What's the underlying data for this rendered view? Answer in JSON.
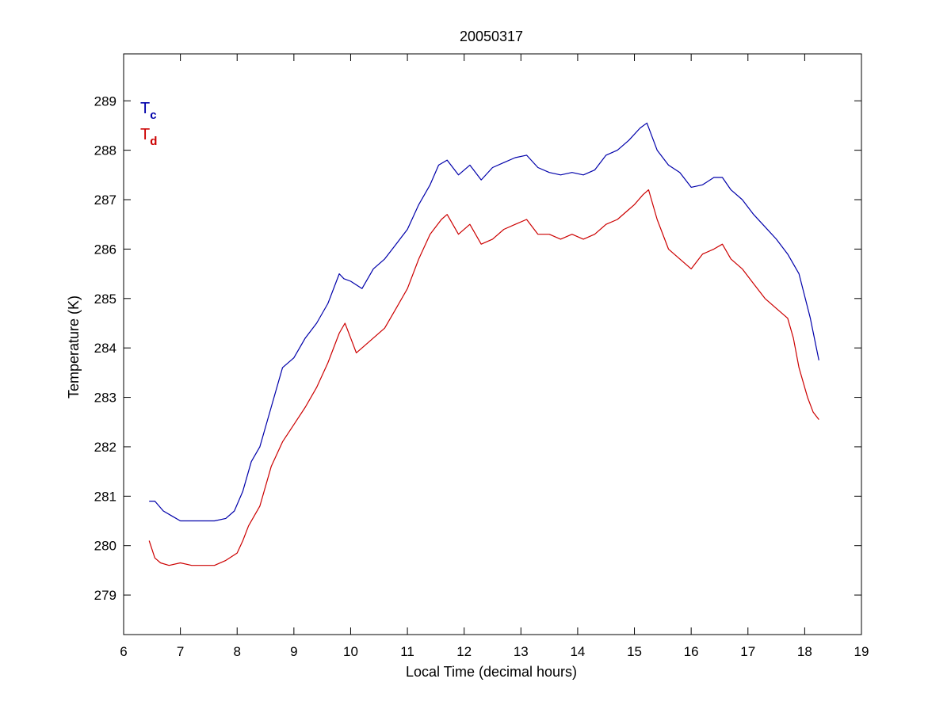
{
  "chart_data": {
    "type": "line",
    "title": "20050317",
    "xlabel": "Local Time (decimal hours)",
    "ylabel": "Temperature (K)",
    "xlim": [
      6,
      19
    ],
    "ylim": [
      278.2,
      289.95
    ],
    "xticks": [
      6,
      7,
      8,
      9,
      10,
      11,
      12,
      13,
      14,
      15,
      16,
      17,
      18,
      19
    ],
    "yticks": [
      279,
      280,
      281,
      282,
      283,
      284,
      285,
      286,
      287,
      288,
      289
    ],
    "grid": false,
    "legend_position": "top-left",
    "series": [
      {
        "name": "T",
        "subscript": "c",
        "color": "#0000aa",
        "x": [
          6.45,
          6.55,
          6.7,
          6.85,
          7.0,
          7.2,
          7.4,
          7.6,
          7.8,
          7.95,
          8.1,
          8.25,
          8.4,
          8.6,
          8.8,
          9.0,
          9.2,
          9.4,
          9.6,
          9.8,
          9.88,
          10.0,
          10.2,
          10.4,
          10.6,
          10.8,
          11.0,
          11.2,
          11.4,
          11.55,
          11.7,
          11.9,
          12.1,
          12.3,
          12.5,
          12.7,
          12.9,
          13.1,
          13.3,
          13.5,
          13.7,
          13.9,
          14.1,
          14.3,
          14.5,
          14.7,
          14.9,
          15.1,
          15.22,
          15.4,
          15.6,
          15.8,
          16.0,
          16.2,
          16.4,
          16.55,
          16.7,
          16.9,
          17.1,
          17.3,
          17.5,
          17.7,
          17.9,
          18.1,
          18.25
        ],
        "y": [
          280.9,
          280.9,
          280.7,
          280.6,
          280.5,
          280.5,
          280.5,
          280.5,
          280.55,
          280.7,
          281.1,
          281.7,
          282.0,
          282.8,
          283.6,
          283.8,
          284.2,
          284.5,
          284.9,
          285.5,
          285.4,
          285.35,
          285.2,
          285.6,
          285.8,
          286.1,
          286.4,
          286.9,
          287.3,
          287.7,
          287.8,
          287.5,
          287.7,
          287.4,
          287.65,
          287.75,
          287.85,
          287.9,
          287.65,
          287.55,
          287.5,
          287.55,
          287.5,
          287.6,
          287.9,
          288.0,
          288.2,
          288.45,
          288.55,
          288.0,
          287.7,
          287.55,
          287.25,
          287.3,
          287.45,
          287.45,
          287.2,
          287.0,
          286.7,
          286.45,
          286.2,
          285.9,
          285.5,
          284.6,
          283.75
        ]
      },
      {
        "name": "T",
        "subscript": "d",
        "color": "#cc0000",
        "x": [
          6.45,
          6.55,
          6.65,
          6.8,
          7.0,
          7.2,
          7.4,
          7.6,
          7.8,
          8.0,
          8.1,
          8.2,
          8.4,
          8.6,
          8.8,
          9.0,
          9.2,
          9.4,
          9.6,
          9.8,
          9.9,
          10.0,
          10.1,
          10.2,
          10.4,
          10.6,
          10.8,
          11.0,
          11.2,
          11.4,
          11.6,
          11.7,
          11.9,
          12.1,
          12.3,
          12.5,
          12.7,
          12.9,
          13.1,
          13.3,
          13.5,
          13.7,
          13.9,
          14.1,
          14.3,
          14.5,
          14.7,
          14.9,
          15.0,
          15.15,
          15.25,
          15.4,
          15.6,
          15.8,
          16.0,
          16.2,
          16.4,
          16.55,
          16.7,
          16.9,
          17.1,
          17.3,
          17.5,
          17.7,
          17.8,
          17.9,
          18.05,
          18.15,
          18.25
        ],
        "y": [
          280.1,
          279.75,
          279.65,
          279.6,
          279.65,
          279.6,
          279.6,
          279.6,
          279.7,
          279.85,
          280.1,
          280.4,
          280.8,
          281.6,
          282.1,
          282.45,
          282.8,
          283.2,
          283.7,
          284.3,
          284.5,
          284.2,
          283.9,
          284.0,
          284.2,
          284.4,
          284.8,
          285.2,
          285.8,
          286.3,
          286.6,
          286.7,
          286.3,
          286.5,
          286.1,
          286.2,
          286.4,
          286.5,
          286.6,
          286.3,
          286.3,
          286.2,
          286.3,
          286.2,
          286.3,
          286.5,
          286.6,
          286.8,
          286.9,
          287.1,
          287.2,
          286.6,
          286.0,
          285.8,
          285.6,
          285.9,
          286.0,
          286.1,
          285.8,
          285.6,
          285.3,
          285.0,
          284.8,
          284.6,
          284.2,
          283.6,
          283.0,
          282.7,
          282.55
        ]
      }
    ]
  }
}
